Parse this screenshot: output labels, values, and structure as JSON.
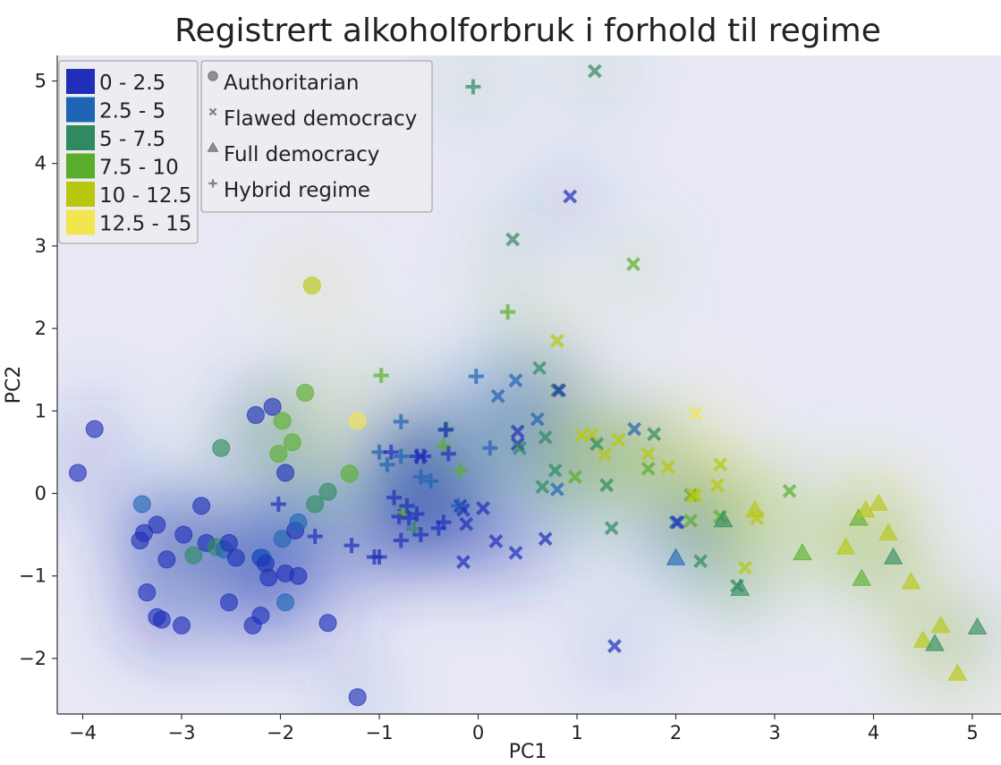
{
  "chart_data": {
    "type": "scatter",
    "title": "Registrert alkoholforbruk i forhold til regime",
    "xlabel": "PC1",
    "ylabel": "PC2",
    "xlim": [
      -4.25,
      5.3
    ],
    "ylim": [
      -2.65,
      5.3
    ],
    "x_ticks": [
      -4,
      -3,
      -2,
      -1,
      0,
      1,
      2,
      3,
      4,
      5
    ],
    "y_ticks": [
      -2,
      -1,
      0,
      1,
      2,
      3,
      4,
      5
    ],
    "grid": false,
    "background": "smoothed colour field of alcohol consumption (interpolated)",
    "color_legend": {
      "placement": "top-left",
      "bins": [
        {
          "label": "0 - 2.5",
          "color": "#1f2fb8"
        },
        {
          "label": "2.5 - 5",
          "color": "#1f64b4"
        },
        {
          "label": "5 - 7.5",
          "color": "#2f8a60"
        },
        {
          "label": "7.5 - 10",
          "color": "#5aae2c"
        },
        {
          "label": "10 - 12.5",
          "color": "#b7c70e"
        },
        {
          "label": "12.5 - 15",
          "color": "#f2e650"
        }
      ]
    },
    "marker_legend": {
      "placement": "top-left",
      "entries": [
        {
          "label": "Authoritarian",
          "marker": "circle"
        },
        {
          "label": "Flawed democracy",
          "marker": "x"
        },
        {
          "label": "Full democracy",
          "marker": "triangle"
        },
        {
          "label": "Hybrid regime",
          "marker": "plus"
        }
      ]
    },
    "series": [
      {
        "regime": "Authoritarian",
        "marker": "circle",
        "points": [
          [
            -4.05,
            0.25,
            0
          ],
          [
            -3.88,
            0.78,
            0
          ],
          [
            -3.4,
            -0.13,
            1
          ],
          [
            -3.42,
            -0.57,
            0
          ],
          [
            -3.38,
            -0.48,
            0
          ],
          [
            -3.35,
            -1.2,
            0
          ],
          [
            -3.25,
            -0.38,
            0
          ],
          [
            -3.25,
            -1.5,
            0
          ],
          [
            -3.2,
            -1.53,
            0
          ],
          [
            -3.15,
            -0.8,
            0
          ],
          [
            -3.0,
            -1.6,
            0
          ],
          [
            -2.98,
            -0.5,
            0
          ],
          [
            -2.88,
            -0.75,
            2
          ],
          [
            -2.8,
            -0.15,
            0
          ],
          [
            -2.75,
            -0.6,
            0
          ],
          [
            -2.65,
            -0.65,
            2
          ],
          [
            -2.6,
            0.55,
            2
          ],
          [
            -2.57,
            -0.68,
            1
          ],
          [
            -2.52,
            -0.6,
            0
          ],
          [
            -2.52,
            -1.32,
            0
          ],
          [
            -2.45,
            -0.78,
            0
          ],
          [
            -2.28,
            -1.6,
            0
          ],
          [
            -2.25,
            0.95,
            0
          ],
          [
            -2.2,
            -1.48,
            0
          ],
          [
            -2.2,
            -0.78,
            0
          ],
          [
            -2.18,
            -0.78,
            1
          ],
          [
            -2.15,
            -0.85,
            0
          ],
          [
            -2.12,
            -1.02,
            0
          ],
          [
            -2.08,
            1.05,
            0
          ],
          [
            -2.02,
            0.48,
            3
          ],
          [
            -1.98,
            0.88,
            3
          ],
          [
            -1.98,
            -0.55,
            1
          ],
          [
            -1.95,
            -0.97,
            0
          ],
          [
            -1.95,
            0.25,
            0
          ],
          [
            -1.95,
            -1.32,
            1
          ],
          [
            -1.88,
            0.62,
            3
          ],
          [
            -1.85,
            -0.45,
            0
          ],
          [
            -1.82,
            -0.35,
            1
          ],
          [
            -1.82,
            -1.0,
            0
          ],
          [
            -1.75,
            1.22,
            3
          ],
          [
            -1.68,
            2.52,
            4
          ],
          [
            -1.65,
            -0.13,
            2
          ],
          [
            -1.52,
            0.02,
            2
          ],
          [
            -1.52,
            -1.57,
            0
          ],
          [
            -1.3,
            0.24,
            3
          ],
          [
            -1.22,
            0.88,
            5
          ],
          [
            -1.22,
            -2.47,
            0
          ]
        ]
      },
      {
        "regime": "Flawed democracy",
        "marker": "x",
        "points": [
          [
            1.18,
            5.12,
            2
          ],
          [
            0.93,
            3.6,
            0
          ],
          [
            0.35,
            3.08,
            2
          ],
          [
            1.57,
            2.78,
            3
          ],
          [
            0.8,
            1.85,
            4
          ],
          [
            0.62,
            1.52,
            2
          ],
          [
            0.38,
            1.37,
            1
          ],
          [
            0.2,
            1.18,
            1
          ],
          [
            0.8,
            1.25,
            2
          ],
          [
            0.82,
            1.25,
            0
          ],
          [
            0.6,
            0.9,
            1
          ],
          [
            0.4,
            0.75,
            0
          ],
          [
            0.4,
            0.6,
            0
          ],
          [
            0.42,
            0.55,
            2
          ],
          [
            0.68,
            0.68,
            2
          ],
          [
            0.78,
            0.28,
            2
          ],
          [
            0.65,
            0.08,
            2
          ],
          [
            0.8,
            0.05,
            1
          ],
          [
            0.98,
            0.2,
            3
          ],
          [
            1.05,
            0.7,
            4
          ],
          [
            1.15,
            0.72,
            4
          ],
          [
            1.2,
            0.6,
            2
          ],
          [
            1.28,
            0.47,
            4
          ],
          [
            1.3,
            0.1,
            2
          ],
          [
            1.35,
            -0.42,
            2
          ],
          [
            1.42,
            0.65,
            4
          ],
          [
            1.58,
            0.78,
            1
          ],
          [
            1.72,
            0.48,
            4
          ],
          [
            1.72,
            0.3,
            3
          ],
          [
            1.78,
            0.72,
            2
          ],
          [
            1.92,
            0.32,
            4
          ],
          [
            2.2,
            0.97,
            5
          ],
          [
            2.15,
            -0.02,
            3
          ],
          [
            2.18,
            -0.02,
            4
          ],
          [
            2.15,
            -0.33,
            3
          ],
          [
            2.2,
            -0.03,
            4
          ],
          [
            2.45,
            0.35,
            4
          ],
          [
            2.42,
            0.1,
            4
          ],
          [
            2.45,
            -0.28,
            3
          ],
          [
            2.0,
            -0.35,
            1
          ],
          [
            2.02,
            -0.35,
            0
          ],
          [
            2.25,
            -0.82,
            2
          ],
          [
            2.62,
            -1.12,
            2
          ],
          [
            2.7,
            -0.9,
            4
          ],
          [
            2.82,
            -0.3,
            4
          ],
          [
            3.15,
            0.03,
            3
          ],
          [
            1.38,
            -1.85,
            0
          ],
          [
            0.68,
            -0.55,
            0
          ],
          [
            0.38,
            -0.72,
            0
          ],
          [
            0.18,
            -0.58,
            0
          ],
          [
            0.05,
            -0.18,
            0
          ],
          [
            -0.15,
            -0.2,
            0
          ],
          [
            -0.18,
            -0.15,
            0
          ],
          [
            -0.15,
            -0.83,
            0
          ],
          [
            -0.12,
            -0.37,
            0
          ],
          [
            -0.58,
            0.45,
            0
          ]
        ]
      },
      {
        "regime": "Full democracy",
        "marker": "triangle",
        "points": [
          [
            2.0,
            -0.78,
            1
          ],
          [
            2.48,
            -0.32,
            2
          ],
          [
            2.65,
            -1.15,
            2
          ],
          [
            2.8,
            -0.2,
            4
          ],
          [
            3.28,
            -0.72,
            3
          ],
          [
            3.72,
            -0.65,
            4
          ],
          [
            3.85,
            -0.3,
            3
          ],
          [
            3.88,
            -1.03,
            3
          ],
          [
            3.92,
            -0.2,
            4
          ],
          [
            4.05,
            -0.12,
            4
          ],
          [
            4.15,
            -0.48,
            4
          ],
          [
            4.2,
            -0.77,
            2
          ],
          [
            4.38,
            -1.07,
            4
          ],
          [
            4.5,
            -1.78,
            4
          ],
          [
            4.62,
            -1.82,
            2
          ],
          [
            4.68,
            -1.6,
            4
          ],
          [
            4.85,
            -2.18,
            4
          ],
          [
            5.05,
            -1.62,
            2
          ]
        ]
      },
      {
        "regime": "Hybrid regime",
        "marker": "plus",
        "points": [
          [
            -0.05,
            4.93,
            2
          ],
          [
            0.3,
            2.2,
            3
          ],
          [
            -0.98,
            1.43,
            3
          ],
          [
            -0.02,
            1.42,
            1
          ],
          [
            -0.78,
            0.87,
            1
          ],
          [
            -0.32,
            0.78,
            2
          ],
          [
            -0.33,
            0.77,
            0
          ],
          [
            -1.0,
            0.5,
            1
          ],
          [
            -0.88,
            0.5,
            0
          ],
          [
            -0.92,
            0.35,
            1
          ],
          [
            -0.78,
            0.45,
            1
          ],
          [
            -0.62,
            0.45,
            0
          ],
          [
            -0.55,
            0.45,
            0
          ],
          [
            -0.58,
            0.2,
            1
          ],
          [
            -0.48,
            0.15,
            1
          ],
          [
            -0.35,
            0.58,
            3
          ],
          [
            -0.3,
            0.48,
            0
          ],
          [
            -0.18,
            0.28,
            3
          ],
          [
            0.12,
            0.55,
            1
          ],
          [
            -0.85,
            -0.05,
            0
          ],
          [
            -0.8,
            -0.28,
            0
          ],
          [
            -0.75,
            -0.23,
            3
          ],
          [
            -0.72,
            -0.15,
            0
          ],
          [
            -0.7,
            -0.3,
            0
          ],
          [
            -0.65,
            -0.43,
            2
          ],
          [
            -0.62,
            -0.25,
            0
          ],
          [
            -0.58,
            -0.5,
            0
          ],
          [
            -0.78,
            -0.57,
            0
          ],
          [
            -0.35,
            -0.35,
            0
          ],
          [
            -0.4,
            -0.42,
            0
          ],
          [
            -0.2,
            -0.15,
            1
          ],
          [
            -1.05,
            -0.77,
            0
          ],
          [
            -1.0,
            -0.77,
            0
          ],
          [
            -1.28,
            -0.63,
            0
          ],
          [
            -1.65,
            -0.52,
            0
          ],
          [
            -2.02,
            -0.13,
            0
          ]
        ]
      }
    ]
  }
}
